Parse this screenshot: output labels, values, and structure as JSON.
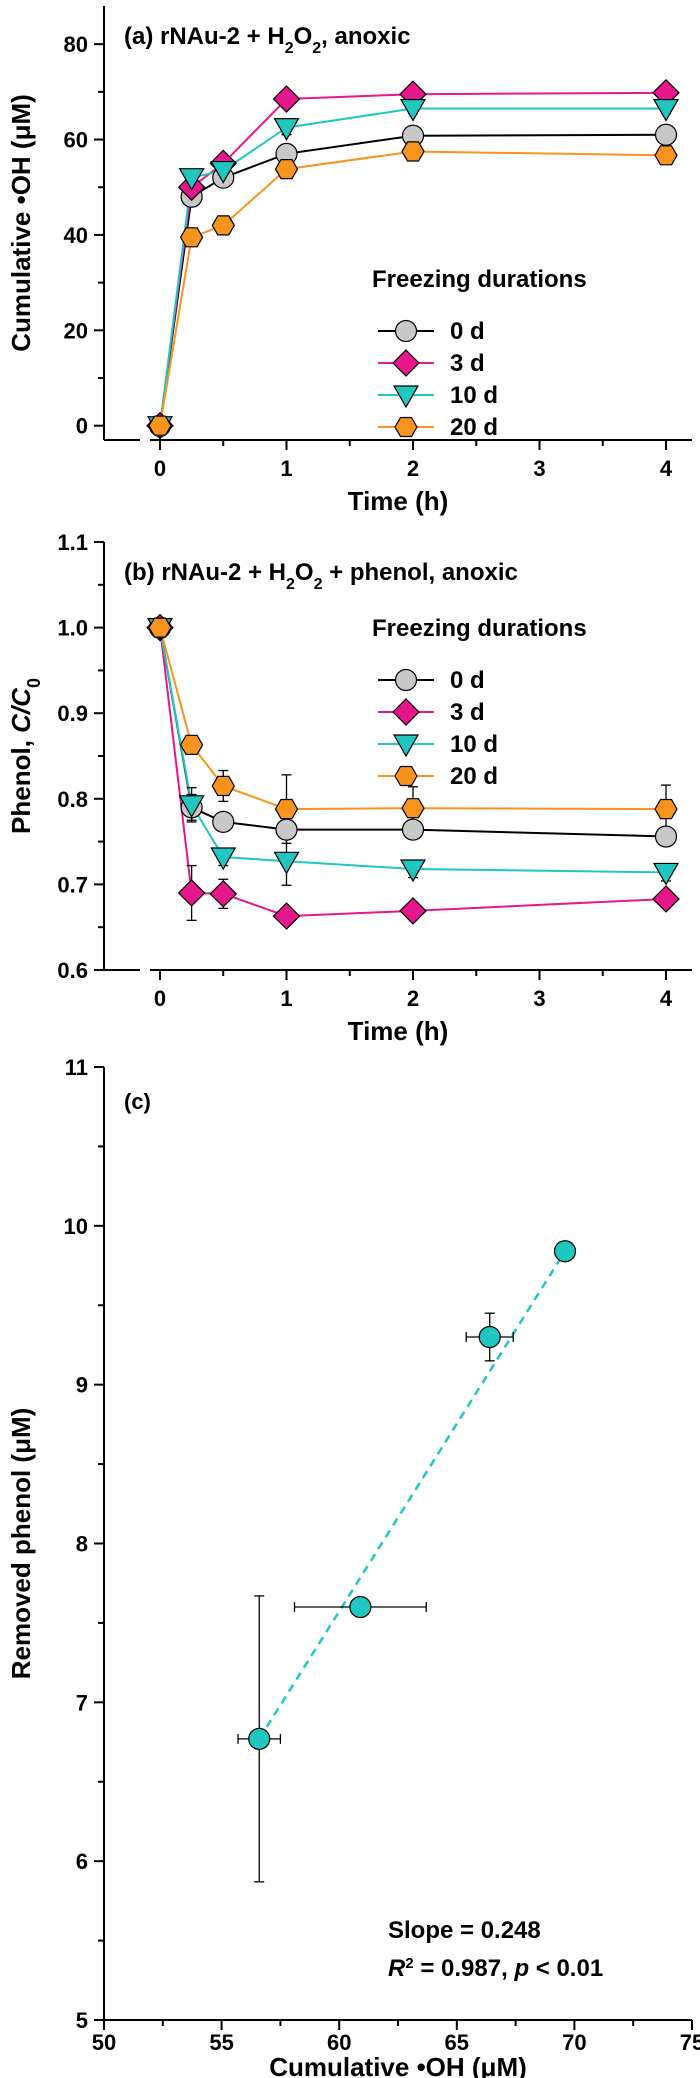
{
  "chart_data": [
    {
      "type": "line",
      "panel": "a",
      "title_parts": [
        "(a) rNAu-2 + H",
        "2",
        "O",
        "2",
        ", anoxic"
      ],
      "xlabel": "Time (h)",
      "ylabel": "Cumulative •OH (μM)",
      "x_ticks": [
        "0",
        "1",
        "2",
        "3",
        "4"
      ],
      "y_ticks": [
        "0",
        "20",
        "40",
        "60",
        "80"
      ],
      "ylim": [
        -3,
        88
      ],
      "x_scale": "broken",
      "legend_title": "Freezing durations",
      "legend_position": "center-right",
      "series": [
        {
          "name": "0 d",
          "marker": "circle",
          "color": "#c8c8c8",
          "line_color": "#000000",
          "x": [
            0,
            0.25,
            0.5,
            1,
            2,
            4
          ],
          "y": [
            0,
            48,
            52,
            57,
            60.8,
            61
          ],
          "err": [
            1.5,
            2,
            1.5,
            2,
            2,
            2
          ]
        },
        {
          "name": "3 d",
          "marker": "diamond",
          "color": "#e6168b",
          "line_color": "#e6168b",
          "x": [
            0,
            0.25,
            0.5,
            1,
            2,
            4
          ],
          "y": [
            0,
            50,
            55,
            68.5,
            69.5,
            69.8
          ],
          "err": [
            1,
            1.5,
            1.5,
            1,
            1,
            1
          ]
        },
        {
          "name": "10 d",
          "marker": "triangle-down",
          "color": "#1fc7c0",
          "line_color": "#1fc7c0",
          "x": [
            0,
            0.25,
            0.5,
            1,
            2,
            4
          ],
          "y": [
            0,
            52,
            53.5,
            62.5,
            66.5,
            66.5
          ],
          "err": [
            1,
            1,
            1,
            1.5,
            1,
            1
          ]
        },
        {
          "name": "20 d",
          "marker": "hexagon",
          "color": "#f7941d",
          "line_color": "#f7941d",
          "x": [
            0,
            0.25,
            0.5,
            1,
            2,
            4
          ],
          "y": [
            0,
            39.5,
            42,
            53.8,
            57.5,
            56.7
          ],
          "err": [
            1,
            1,
            1,
            1.5,
            1.5,
            1.5
          ]
        }
      ]
    },
    {
      "type": "line",
      "panel": "b",
      "title_parts": [
        "(b) rNAu-2 + H",
        "2",
        "O",
        "2",
        " + phenol, anoxic"
      ],
      "xlabel": "Time (h)",
      "ylabel_parts": [
        "Phenol, ",
        "C",
        "/",
        "C",
        "0"
      ],
      "x_ticks": [
        "0",
        "1",
        "2",
        "3",
        "4"
      ],
      "y_ticks": [
        "0.6",
        "0.7",
        "0.8",
        "0.9",
        "1.0",
        "1.1"
      ],
      "ylim": [
        0.6,
        1.1
      ],
      "x_scale": "broken",
      "legend_title": "Freezing durations",
      "legend_position": "top-right",
      "series": [
        {
          "name": "0 d",
          "marker": "circle",
          "color": "#c8c8c8",
          "line_color": "#000000",
          "x": [
            0,
            0.25,
            0.5,
            1,
            2,
            4
          ],
          "y": [
            1.0,
            0.79,
            0.773,
            0.764,
            0.764,
            0.756
          ],
          "err": [
            0.003,
            0.015,
            0.01,
            0.008,
            0.008,
            0.008
          ]
        },
        {
          "name": "3 d",
          "marker": "diamond",
          "color": "#e6168b",
          "line_color": "#e6168b",
          "x": [
            0,
            0.25,
            0.5,
            1,
            2,
            4
          ],
          "y": [
            1.0,
            0.69,
            0.689,
            0.663,
            0.669,
            0.683
          ],
          "err": [
            0.003,
            0.032,
            0.017,
            0.006,
            0.005,
            0.006
          ]
        },
        {
          "name": "10 d",
          "marker": "triangle-down",
          "color": "#1fc7c0",
          "line_color": "#1fc7c0",
          "x": [
            0,
            0.25,
            0.5,
            1,
            2,
            4
          ],
          "y": [
            1.0,
            0.793,
            0.732,
            0.727,
            0.718,
            0.714
          ],
          "err": [
            0.003,
            0.02,
            0.01,
            0.028,
            0.01,
            0.01
          ]
        },
        {
          "name": "20 d",
          "marker": "hexagon",
          "color": "#f7941d",
          "line_color": "#f7941d",
          "x": [
            0,
            0.25,
            0.5,
            1,
            2,
            4
          ],
          "y": [
            1.0,
            0.863,
            0.815,
            0.788,
            0.789,
            0.788
          ],
          "err": [
            0.003,
            0.01,
            0.018,
            0.04,
            0.025,
            0.028
          ]
        }
      ]
    },
    {
      "type": "scatter",
      "panel": "c",
      "title": "(c)",
      "xlabel": "Cumulative •OH (μM)",
      "ylabel": "Removed phenol (μM)",
      "x_ticks": [
        "50",
        "55",
        "60",
        "65",
        "70",
        "75"
      ],
      "y_ticks": [
        "5",
        "6",
        "7",
        "8",
        "9",
        "10",
        "11"
      ],
      "xlim": [
        50,
        75
      ],
      "ylim": [
        5,
        11
      ],
      "marker_color": "#1fc7c0",
      "points": [
        {
          "x": 56.6,
          "y": 6.77,
          "xerr": 0.9,
          "yerr": 0.9
        },
        {
          "x": 60.9,
          "y": 7.6,
          "xerr": 2.8,
          "yerr": 0.05
        },
        {
          "x": 66.4,
          "y": 9.3,
          "xerr": 1.0,
          "yerr": 0.15
        },
        {
          "x": 69.6,
          "y": 9.84,
          "xerr": 0.3,
          "yerr": 0.05
        }
      ],
      "fit_line": {
        "x": [
          56.6,
          69.6
        ],
        "style": "dashed",
        "color": "#1fc7c0"
      },
      "annotation_slope": "Slope = 0.248",
      "annotation_r2": [
        "R",
        "2",
        " = 0.987,  ",
        "p",
        " < 0.01"
      ]
    }
  ]
}
